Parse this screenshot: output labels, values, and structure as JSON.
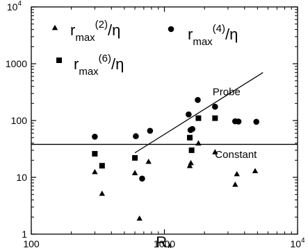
{
  "chart_data": {
    "type": "scatter",
    "xscale": "log",
    "yscale": "log",
    "xlim": [
      100,
      10000
    ],
    "ylim": [
      1,
      10000
    ],
    "xlabel": {
      "main": "R",
      "sub": "λ"
    },
    "ylabel": "",
    "grid": false,
    "x_ticks": [
      {
        "value": 100,
        "label": "100"
      },
      {
        "value": 1000,
        "label": "1000"
      },
      {
        "value": 10000,
        "label": "10",
        "sup": "4"
      }
    ],
    "y_ticks": [
      {
        "value": 1,
        "label": "1"
      },
      {
        "value": 10,
        "label": "10"
      },
      {
        "value": 100,
        "label": "100"
      },
      {
        "value": 1000,
        "label": "1000"
      },
      {
        "value": 10000,
        "label": "10",
        "sup": "4"
      }
    ],
    "legend_placement": "top-left",
    "series": [
      {
        "name_main": "r",
        "name_sub": "max",
        "name_sup": "(2)",
        "name_rest": "/η",
        "marker": "triangle",
        "points": [
          [
            300,
            12.5
          ],
          [
            340,
            5.2
          ],
          [
            600,
            12
          ],
          [
            650,
            1.9
          ],
          [
            760,
            19
          ],
          [
            1550,
            16
          ],
          [
            1580,
            18
          ],
          [
            1800,
            40
          ],
          [
            2400,
            28
          ],
          [
            3400,
            7.5
          ],
          [
            3500,
            11.5
          ],
          [
            4800,
            13
          ]
        ]
      },
      {
        "name_main": "r",
        "name_sub": "max",
        "name_sup": "(4)",
        "name_rest": "/η",
        "marker": "circle",
        "points": [
          [
            300,
            52
          ],
          [
            610,
            53
          ],
          [
            680,
            9.5
          ],
          [
            780,
            66
          ],
          [
            1520,
            128
          ],
          [
            1570,
            68
          ],
          [
            1620,
            71
          ],
          [
            1780,
            230
          ],
          [
            2400,
            175
          ],
          [
            3400,
            97
          ],
          [
            3600,
            96
          ],
          [
            4900,
            95
          ]
        ]
      },
      {
        "name_main": "r",
        "name_sub": "max",
        "name_sup": "(6)",
        "name_rest": "/η",
        "marker": "square",
        "points": [
          [
            300,
            26
          ],
          [
            340,
            16
          ],
          [
            600,
            22
          ],
          [
            1550,
            50
          ],
          [
            1600,
            30
          ],
          [
            1800,
            110
          ],
          [
            2400,
            110
          ]
        ]
      }
    ],
    "lines": [
      {
        "name": "Probe",
        "points": [
          [
            600,
            27
          ],
          [
            5500,
            700
          ]
        ]
      },
      {
        "name": "Constant",
        "points": [
          [
            100,
            38
          ],
          [
            10000,
            38
          ]
        ]
      }
    ]
  }
}
